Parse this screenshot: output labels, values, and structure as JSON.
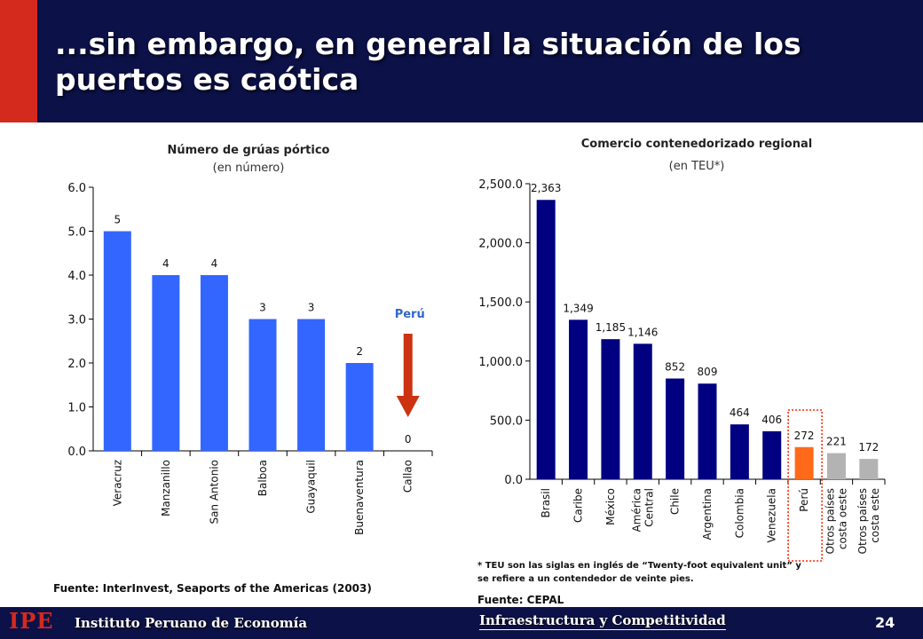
{
  "slide": {
    "title": "...sin embargo, en general la situación de los puertos es caótica",
    "page_number": "24"
  },
  "footer": {
    "logo": "IPE",
    "institute": "Instituto Peruano de Economía",
    "section": "Infraestructura y Competitividad"
  },
  "left_chart": {
    "subtitle": "(en número)",
    "source": "Fuente: InterInvest, Seaports of the Americas (2003)",
    "peru_label": "Perú"
  },
  "right_chart": {
    "subtitle": "(en TEU*)",
    "source": "Fuente: CEPAL",
    "note": "* TEU son las siglas en inglés de “Twenty-foot equivalent unit” y se refiere a un contendedor de veinte pies."
  },
  "colors": {
    "header_bg": "#0c1147",
    "accent_red": "#d42a1e",
    "left_bar": "#3366ff",
    "right_bar": "#000080",
    "peru_bar": "#ff6a1a",
    "other_bar": "#b3b3b3",
    "arrow": "#cc3311"
  },
  "chart_data": [
    {
      "type": "bar",
      "title": "Número de grúas pórtico",
      "categories": [
        "Veracruz",
        "Manzanillo",
        "San Antonio",
        "Balboa",
        "Guayaquil",
        "Buenaventura",
        "Callao"
      ],
      "values": [
        5,
        4,
        4,
        3,
        3,
        2,
        0
      ],
      "data_labels": [
        "5",
        "4",
        "4",
        "3",
        "3",
        "2",
        "0"
      ],
      "yticks": [
        "0.0",
        "1.0",
        "2.0",
        "3.0",
        "4.0",
        "5.0",
        "6.0"
      ],
      "ylim": [
        0,
        6
      ]
    },
    {
      "type": "bar",
      "title": "Comercio contenedorizado regional",
      "categories": [
        [
          "Brasil"
        ],
        [
          "Caribe"
        ],
        [
          "México"
        ],
        [
          "América",
          "Central"
        ],
        [
          "Chile"
        ],
        [
          "Argentina"
        ],
        [
          "Colombia"
        ],
        [
          "Venezuela"
        ],
        [
          "Perú"
        ],
        [
          "Otros países",
          "costa oeste"
        ],
        [
          "Otros países",
          "costa este"
        ]
      ],
      "values": [
        2363,
        1349,
        1185,
        1146,
        852,
        809,
        464,
        406,
        272,
        221,
        172
      ],
      "data_labels": [
        "2,363",
        "1,349",
        "1,185",
        "1,146",
        "852",
        "809",
        "464",
        "406",
        "272",
        "221",
        "172"
      ],
      "yticks": [
        "0.0",
        "500.0",
        "1,000.0",
        "1,500.0",
        "2,000.0",
        "2,500.0"
      ],
      "ylim": [
        0,
        2500
      ]
    }
  ]
}
